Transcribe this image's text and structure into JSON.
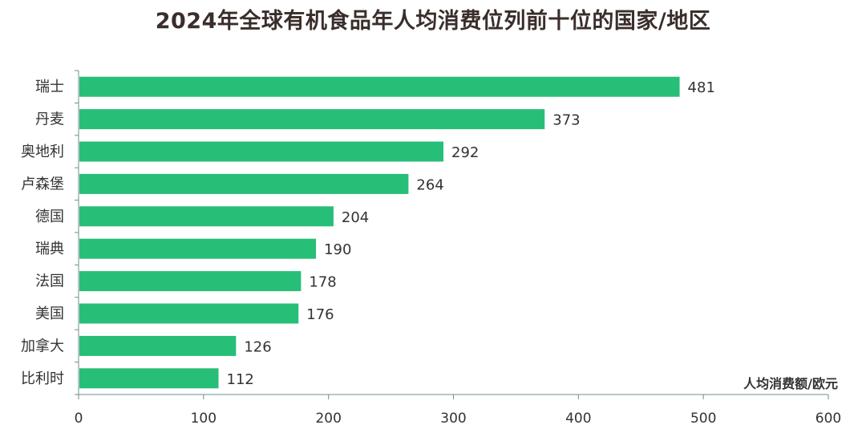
{
  "chart_data": {
    "type": "bar",
    "orientation": "horizontal",
    "title": "2024年全球有机食品年人均消费位列前十位的国家/地区",
    "xlabel": "人均消费额/欧元",
    "ylabel": "",
    "categories": [
      "瑞士",
      "丹麦",
      "奥地利",
      "卢森堡",
      "德国",
      "瑞典",
      "法国",
      "美国",
      "加拿大",
      "比利时"
    ],
    "values": [
      481,
      373,
      292,
      264,
      204,
      190,
      178,
      176,
      126,
      112
    ],
    "xlim": [
      0,
      600
    ],
    "xticks": [
      "0",
      "100",
      "200",
      "300",
      "400",
      "500",
      "600"
    ],
    "grid": false,
    "legend": "none",
    "bar_color": "#27be78",
    "axis_color": "#6f8f8f"
  }
}
